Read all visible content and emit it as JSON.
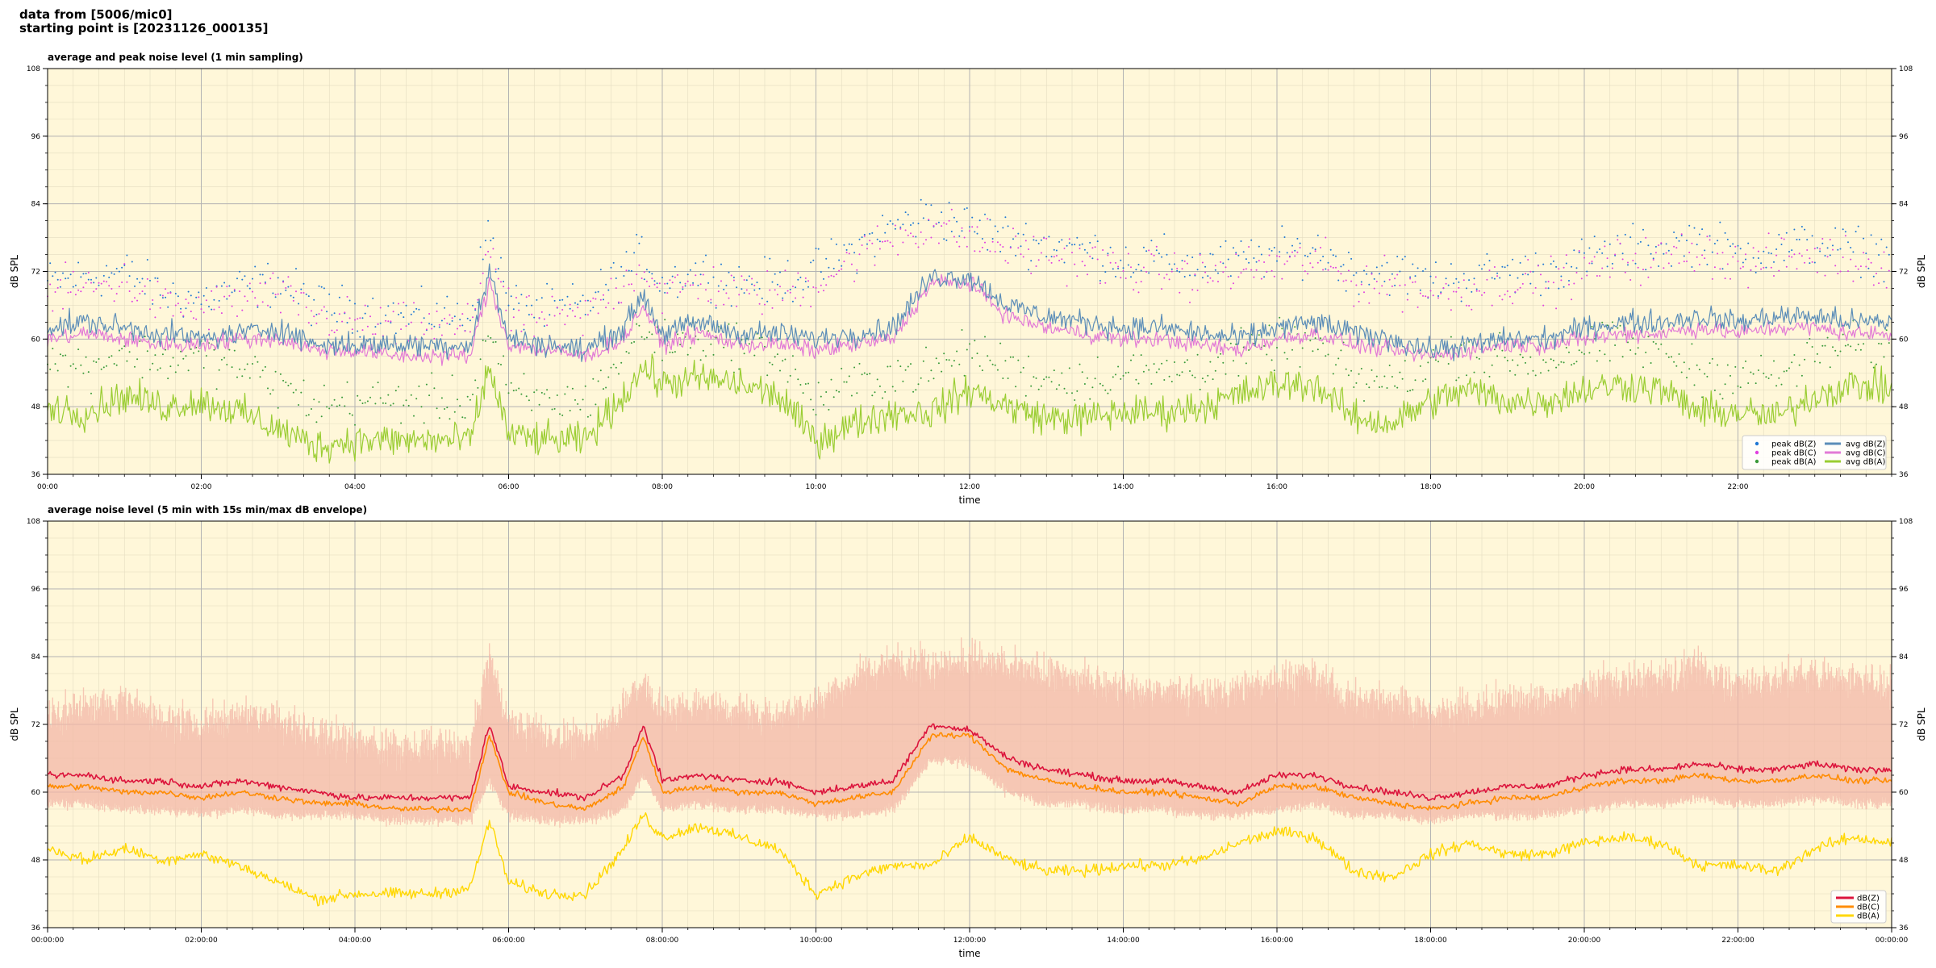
{
  "header": {
    "line1": "data from [5006/mic0]",
    "line2": "starting point is [20231126_000135]"
  },
  "colors": {
    "background": "#fff7d9",
    "top_avg_z": "#5b8db8",
    "top_avg_c": "#e27ad6",
    "top_avg_a": "#9acd32",
    "top_peak_z": "#1f77d4",
    "top_peak_c": "#e040e0",
    "top_peak_a": "#3a9a3a",
    "bot_z": "#dc143c",
    "bot_c": "#ff8c00",
    "bot_a": "#ffd700",
    "bot_envelope": "#f4b8a8"
  },
  "chart_data": [
    {
      "type": "line",
      "title": "average and peak noise level (1 min sampling)",
      "xlabel": "time",
      "ylabel": "dB SPL",
      "ylabel_right": "dB SPL",
      "xlim_hours": [
        0,
        24
      ],
      "ylim": [
        36,
        108
      ],
      "yticks": [
        "36",
        "48",
        "60",
        "72",
        "84",
        "96",
        "108"
      ],
      "xticks": [
        "00:00",
        "02:00",
        "04:00",
        "06:00",
        "08:00",
        "10:00",
        "12:00",
        "14:00",
        "16:00",
        "18:00",
        "20:00",
        "22:00"
      ],
      "grid": true,
      "legend_position": "lower-right",
      "legend": [
        "peak dB(Z)",
        "peak dB(C)",
        "peak dB(A)",
        "avg dB(Z)",
        "avg dB(C)",
        "avg dB(A)"
      ],
      "x_hours": [
        0,
        0.5,
        1,
        1.5,
        2,
        2.5,
        3,
        3.5,
        4,
        4.5,
        5,
        5.5,
        5.75,
        6,
        6.5,
        7,
        7.5,
        7.75,
        8,
        8.5,
        9,
        9.5,
        10,
        10.5,
        11,
        11.5,
        12,
        12.5,
        13,
        13.5,
        14,
        14.5,
        15,
        15.5,
        16,
        16.5,
        17,
        17.5,
        18,
        18.5,
        19,
        19.5,
        20,
        20.5,
        21,
        21.5,
        22,
        22.5,
        23,
        23.5,
        24
      ],
      "series": [
        {
          "name": "avg dB(Z)",
          "values": [
            62,
            63,
            62,
            61,
            60,
            61,
            62,
            59,
            59,
            59,
            59,
            59,
            72,
            60,
            59,
            58,
            62,
            68,
            61,
            63,
            61,
            61,
            60,
            61,
            62,
            71,
            71,
            66,
            64,
            63,
            62,
            62,
            61,
            60,
            62,
            63,
            61,
            60,
            58,
            59,
            60,
            60,
            62,
            63,
            63,
            64,
            63,
            64,
            64,
            63,
            63
          ]
        },
        {
          "name": "avg dB(C)",
          "values": [
            60,
            61,
            60,
            59,
            59,
            60,
            60,
            58,
            58,
            57,
            57,
            57,
            70,
            59,
            58,
            57,
            60,
            66,
            59,
            61,
            59,
            59,
            58,
            59,
            60,
            70,
            70,
            64,
            62,
            61,
            60,
            60,
            59,
            58,
            60,
            61,
            59,
            58,
            57,
            58,
            59,
            59,
            60,
            61,
            61,
            62,
            61,
            62,
            62,
            61,
            61
          ]
        },
        {
          "name": "avg dB(A)",
          "values": [
            48,
            47,
            50,
            48,
            49,
            47,
            44,
            41,
            42,
            42,
            42,
            42,
            55,
            43,
            42,
            42,
            50,
            55,
            52,
            53,
            52,
            50,
            42,
            45,
            47,
            47,
            51,
            48,
            46,
            46,
            47,
            47,
            48,
            50,
            52,
            52,
            46,
            45,
            49,
            51,
            49,
            49,
            51,
            52,
            51,
            47,
            47,
            46,
            50,
            52,
            51
          ]
        },
        {
          "name": "peak dB(Z)",
          "values": [
            70,
            71,
            72,
            68,
            67,
            69,
            70,
            66,
            65,
            64,
            64,
            64,
            80,
            66,
            65,
            66,
            72,
            75,
            70,
            72,
            70,
            70,
            72,
            76,
            80,
            82,
            80,
            78,
            77,
            76,
            74,
            74,
            73,
            74,
            75,
            76,
            72,
            72,
            70,
            71,
            72,
            72,
            74,
            76,
            76,
            78,
            75,
            76,
            77,
            76,
            75
          ]
        },
        {
          "name": "peak dB(C)",
          "values": [
            68,
            69,
            70,
            66,
            65,
            67,
            68,
            64,
            63,
            62,
            62,
            62,
            78,
            64,
            63,
            64,
            70,
            73,
            68,
            70,
            68,
            68,
            70,
            74,
            78,
            80,
            78,
            76,
            75,
            74,
            72,
            72,
            71,
            72,
            73,
            74,
            70,
            70,
            68,
            69,
            70,
            70,
            72,
            74,
            74,
            76,
            73,
            74,
            75,
            74,
            73
          ]
        },
        {
          "name": "peak dB(A)",
          "values": [
            56,
            55,
            58,
            56,
            57,
            55,
            52,
            48,
            49,
            49,
            49,
            49,
            62,
            50,
            49,
            49,
            57,
            62,
            59,
            60,
            59,
            57,
            49,
            52,
            54,
            54,
            58,
            55,
            53,
            53,
            54,
            54,
            55,
            57,
            59,
            59,
            53,
            52,
            56,
            58,
            56,
            56,
            58,
            59,
            58,
            54,
            54,
            53,
            57,
            59,
            58
          ]
        }
      ]
    },
    {
      "type": "line",
      "title": "average noise level (5 min with 15s min/max dB envelope)",
      "xlabel": "time",
      "ylabel": "dB SPL",
      "ylabel_right": "dB SPL",
      "xlim_hours": [
        0,
        24
      ],
      "ylim": [
        36,
        108
      ],
      "yticks": [
        "36",
        "48",
        "60",
        "72",
        "84",
        "96",
        "108"
      ],
      "xticks": [
        "00:00:00",
        "02:00:00",
        "04:00:00",
        "06:00:00",
        "08:00:00",
        "10:00:00",
        "12:00:00",
        "14:00:00",
        "16:00:00",
        "18:00:00",
        "20:00:00",
        "22:00:00",
        "00:00:00"
      ],
      "grid": true,
      "legend_position": "lower-right",
      "legend": [
        "dB(Z)",
        "dB(C)",
        "dB(A)"
      ],
      "x_hours": [
        0,
        0.5,
        1,
        1.5,
        2,
        2.5,
        3,
        3.5,
        4,
        4.5,
        5,
        5.5,
        5.75,
        6,
        6.5,
        7,
        7.5,
        7.75,
        8,
        8.5,
        9,
        9.5,
        10,
        10.5,
        11,
        11.5,
        12,
        12.5,
        13,
        13.5,
        14,
        14.5,
        15,
        15.5,
        16,
        16.5,
        17,
        17.5,
        18,
        18.5,
        19,
        19.5,
        20,
        20.5,
        21,
        21.5,
        22,
        22.5,
        23,
        23.5,
        24
      ],
      "series": [
        {
          "name": "dB(Z)",
          "values": [
            63,
            63,
            62,
            62,
            61,
            62,
            61,
            60,
            59,
            59,
            59,
            59,
            72,
            61,
            60,
            59,
            63,
            72,
            62,
            63,
            62,
            62,
            60,
            61,
            62,
            72,
            71,
            66,
            64,
            63,
            62,
            62,
            61,
            60,
            63,
            63,
            61,
            60,
            59,
            60,
            61,
            61,
            63,
            64,
            64,
            65,
            64,
            64,
            65,
            64,
            64
          ]
        },
        {
          "name": "dB(C)",
          "values": [
            61,
            61,
            60,
            60,
            59,
            60,
            59,
            58,
            58,
            57,
            57,
            57,
            70,
            60,
            58,
            57,
            61,
            70,
            60,
            61,
            60,
            60,
            58,
            59,
            60,
            70,
            70,
            64,
            62,
            61,
            60,
            60,
            59,
            58,
            61,
            61,
            59,
            58,
            57,
            58,
            59,
            59,
            61,
            62,
            62,
            63,
            62,
            62,
            63,
            62,
            62
          ]
        },
        {
          "name": "dB(A)",
          "values": [
            50,
            48,
            50,
            48,
            49,
            47,
            44,
            41,
            42,
            42,
            42,
            43,
            55,
            44,
            42,
            42,
            50,
            56,
            52,
            54,
            52,
            50,
            42,
            45,
            47,
            47,
            52,
            48,
            46,
            46,
            47,
            47,
            48,
            51,
            53,
            52,
            46,
            45,
            49,
            51,
            49,
            49,
            51,
            52,
            51,
            47,
            47,
            46,
            50,
            52,
            51
          ]
        },
        {
          "name": "envelope max",
          "values": [
            74,
            75,
            76,
            73,
            72,
            74,
            73,
            70,
            69,
            68,
            68,
            68,
            84,
            72,
            70,
            69,
            75,
            80,
            74,
            76,
            74,
            74,
            76,
            80,
            83,
            82,
            84,
            82,
            81,
            80,
            78,
            78,
            77,
            78,
            80,
            80,
            76,
            76,
            74,
            75,
            76,
            76,
            78,
            80,
            80,
            82,
            79,
            80,
            81,
            80,
            79
          ]
        },
        {
          "name": "envelope min",
          "values": [
            58,
            58,
            57,
            57,
            56,
            57,
            56,
            56,
            56,
            55,
            55,
            55,
            62,
            56,
            55,
            55,
            57,
            63,
            57,
            58,
            57,
            57,
            56,
            56,
            57,
            66,
            65,
            60,
            58,
            58,
            57,
            57,
            56,
            56,
            57,
            58,
            56,
            56,
            55,
            56,
            56,
            56,
            57,
            58,
            58,
            59,
            58,
            58,
            59,
            58,
            58
          ]
        }
      ]
    }
  ]
}
